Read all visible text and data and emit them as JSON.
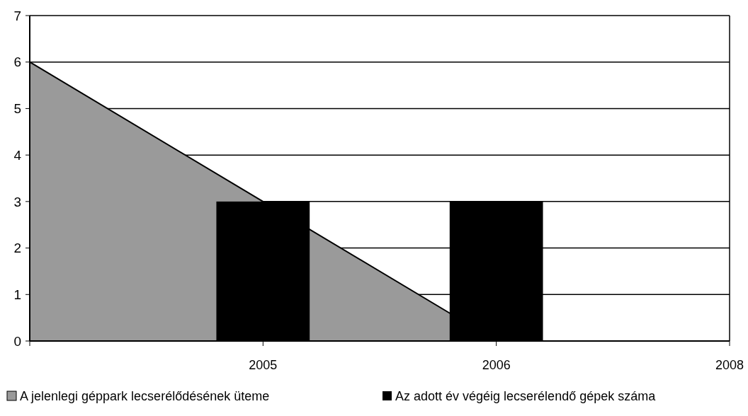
{
  "chart_data": {
    "type": "area",
    "categories": [
      null,
      "2005",
      "2006",
      "2008"
    ],
    "ylim": [
      0,
      7
    ],
    "yticks": [
      0,
      1,
      2,
      3,
      4,
      5,
      6,
      7
    ],
    "grid": "y",
    "legend": "bottom",
    "series": [
      {
        "name": "A jelenlegi géppark lecserélődésének üteme",
        "color": "#9a9a9a",
        "values": [
          6,
          3,
          0,
          null
        ]
      },
      {
        "name": "Az adott év végéig lecserélendő gépek száma",
        "type": "bar",
        "color": "#000000",
        "values": [
          null,
          3,
          3,
          null
        ]
      }
    ]
  }
}
